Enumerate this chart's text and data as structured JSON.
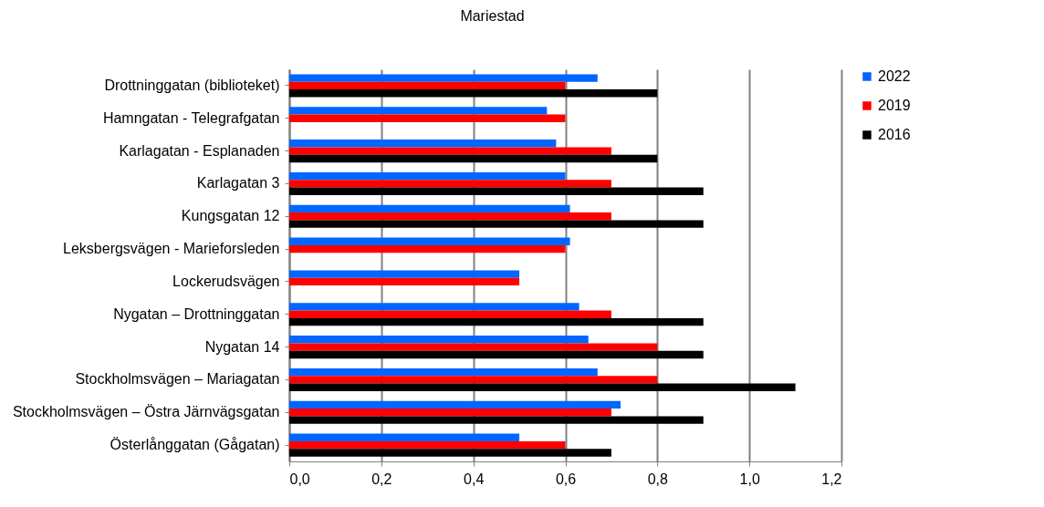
{
  "chart_data": {
    "type": "bar",
    "orientation": "horizontal",
    "title": "Mariestad",
    "categories": [
      "Drottninggatan (biblioteket)",
      "Hamngatan - Telegrafgatan",
      "Karlagatan - Esplanaden",
      "Karlagatan 3",
      "Kungsgatan 12",
      "Leksbergsvägen - Marieforsleden",
      "Lockerudsvägen",
      "Nygatan – Drottninggatan",
      "Nygatan 14",
      "Stockholmsvägen  – Mariagatan",
      "Stockholmsvägen  – Östra Järnvägsgatan",
      "Österlånggatan (Gågatan)"
    ],
    "series": [
      {
        "name": "2022",
        "color": "#0066ff",
        "values": [
          0.67,
          0.56,
          0.58,
          0.6,
          0.61,
          0.61,
          0.5,
          0.63,
          0.65,
          0.67,
          0.72,
          0.5
        ]
      },
      {
        "name": "2019",
        "color": "#ff0000",
        "values": [
          0.6,
          0.6,
          0.7,
          0.7,
          0.7,
          0.6,
          0.5,
          0.7,
          0.8,
          0.8,
          0.7,
          0.6
        ]
      },
      {
        "name": "2016",
        "color": "#000000",
        "values": [
          0.8,
          null,
          0.8,
          0.9,
          0.9,
          null,
          null,
          0.9,
          0.9,
          1.1,
          0.9,
          0.7
        ]
      }
    ],
    "xlim": [
      0,
      1.2
    ],
    "xticks": [
      {
        "value": 0,
        "label": "0,0"
      },
      {
        "value": 0.2,
        "label": "0,2"
      },
      {
        "value": 0.4,
        "label": "0,4"
      },
      {
        "value": 0.6,
        "label": "0,6"
      },
      {
        "value": 0.8,
        "label": "0,8"
      },
      {
        "value": 1.0,
        "label": "1,0"
      },
      {
        "value": 1.2,
        "label": "1,2"
      }
    ],
    "grid": "x",
    "legend": "right"
  }
}
